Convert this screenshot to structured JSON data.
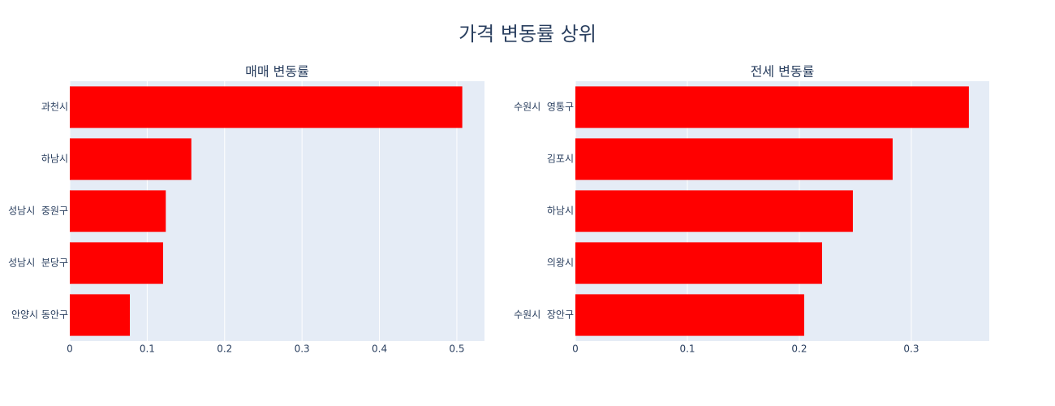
{
  "title": "가격 변동률 상위",
  "chart_data": [
    {
      "type": "bar",
      "orientation": "h",
      "title": "매매 변동률",
      "categories": [
        "과천시",
        "하남시",
        "성남시  중원구",
        "성남시  분당구",
        "안양시 동안구"
      ],
      "values": [
        0.507,
        0.157,
        0.124,
        0.1205,
        0.0776
      ],
      "color": "#ff0000",
      "xlim": [
        0,
        0.5357
      ],
      "xticks": [
        0,
        0.1,
        0.2,
        0.3,
        0.4,
        0.5
      ],
      "grid": true
    },
    {
      "type": "bar",
      "orientation": "h",
      "title": "전세 변동률",
      "categories": [
        "수원시  영통구",
        "김포시",
        "하남시",
        "의왕시",
        "수원시  장안구"
      ],
      "values": [
        0.3514,
        0.2833,
        0.2478,
        0.2203,
        0.2043
      ],
      "color": "#ff0000",
      "xlim": [
        0,
        0.3696
      ],
      "xticks": [
        0,
        0.1,
        0.2,
        0.3
      ],
      "grid": true
    }
  ]
}
